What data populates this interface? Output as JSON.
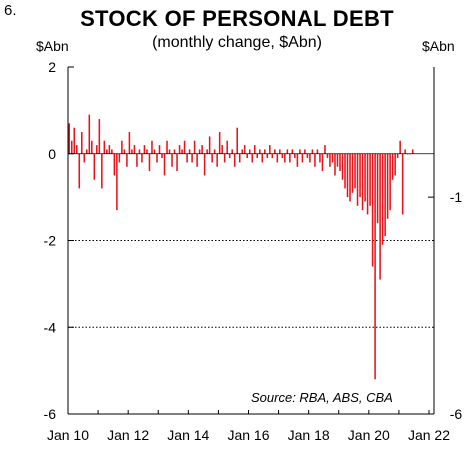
{
  "figure": {
    "number": "6.",
    "title": "STOCK OF PERSONAL DEBT",
    "subtitle": "(monthly change, $Abn)",
    "left_unit": "$Abn",
    "right_unit": "$Abn",
    "source": "Source: RBA, ABS, CBA"
  },
  "colors": {
    "bars": "#e8141b",
    "gridline": "#000000"
  },
  "chart_data": {
    "type": "bar",
    "title": "STOCK OF PERSONAL DEBT",
    "subtitle": "(monthly change, $Abn)",
    "xlabel": "",
    "ylabel": "$Abn",
    "ylim": [
      -6,
      2
    ],
    "y_ticks_left": [
      "2",
      "0",
      "-2",
      "-4",
      "-6"
    ],
    "y_ticks_right": [
      "-1",
      "-6"
    ],
    "x_ticks": [
      "Jan 10",
      "Jan 12",
      "Jan 14",
      "Jan 16",
      "Jan 18",
      "Jan 20",
      "Jan 22"
    ],
    "x_range": [
      "2010-01",
      "2022-03"
    ],
    "grid": "dotted horizontal at -2 and -4",
    "start_month": "2010-01",
    "values": [
      0.7,
      0.3,
      0.6,
      0.2,
      -0.8,
      0.5,
      -0.2,
      0.1,
      0.9,
      0.3,
      -0.6,
      0.2,
      0.8,
      -0.8,
      0.3,
      0.1,
      0.2,
      0.1,
      -0.5,
      -1.3,
      -0.2,
      0.3,
      0.1,
      -0.3,
      0.5,
      0.1,
      0.2,
      -0.3,
      0.1,
      -0.2,
      0.2,
      0.1,
      -0.4,
      0.3,
      0.1,
      -0.2,
      0.2,
      -0.1,
      -0.5,
      0.3,
      0.1,
      -0.3,
      0.1,
      -0.4,
      0.2,
      0.1,
      0.3,
      -0.2,
      0.1,
      -0.2,
      0.3,
      -0.3,
      0.1,
      0.2,
      -0.5,
      0.1,
      0.4,
      -0.2,
      0.1,
      -0.3,
      0.5,
      0.2,
      -0.2,
      0.3,
      -0.1,
      0.1,
      -0.3,
      0.6,
      -0.2,
      0.1,
      0.2,
      -0.1,
      0.1,
      -0.2,
      0.2,
      -0.1,
      0.1,
      -0.2,
      0.1,
      -0.1,
      0.2,
      -0.1,
      0.1,
      -0.2,
      0.1,
      -0.1,
      -0.2,
      0.1,
      -0.2,
      0.1,
      -0.1,
      -0.3,
      0.1,
      -0.2,
      0.1,
      -0.1,
      -0.2,
      0.1,
      -0.3,
      0.1,
      -0.2,
      -0.4,
      0.2,
      -0.1,
      -0.3,
      -0.2,
      -0.5,
      -0.3,
      -0.4,
      -0.6,
      -0.8,
      -1.0,
      -1.1,
      -0.9,
      -0.8,
      -1.2,
      -1.0,
      -1.3,
      -1.1,
      -1.4,
      -1.2,
      -2.6,
      -5.2,
      -1.6,
      -2.9,
      -2.1,
      -1.9,
      -1.5,
      -1.3,
      -0.6,
      -0.5,
      -0.1,
      0.3,
      -1.4,
      0.1,
      0.0,
      0.0,
      0.1
    ]
  }
}
